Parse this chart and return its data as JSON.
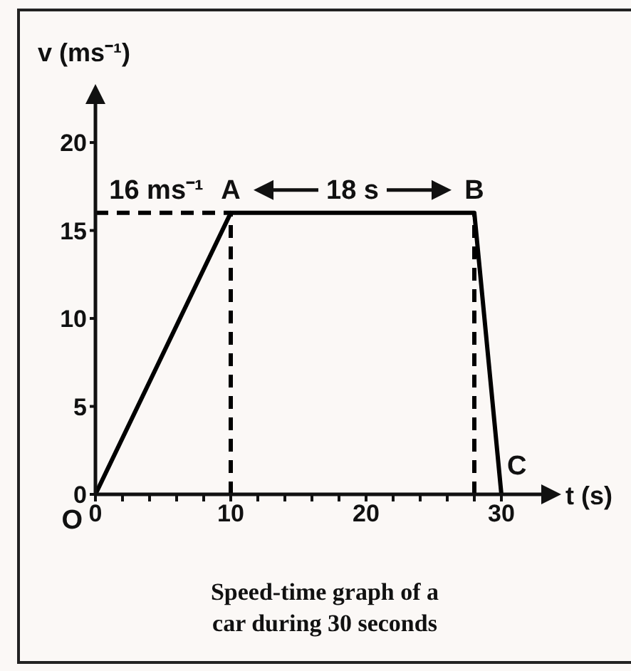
{
  "chart_data": {
    "type": "line",
    "xlabel": "t (s)",
    "ylabel": "v (ms⁻¹)",
    "xlim": [
      0,
      34
    ],
    "ylim": [
      0,
      23
    ],
    "xticks": [
      0,
      {
        "value": 2,
        "label": null
      },
      {
        "value": 4,
        "label": null
      },
      {
        "value": 6,
        "label": null
      },
      {
        "value": 8,
        "label": null
      },
      10,
      {
        "value": 12,
        "label": null
      },
      {
        "value": 14,
        "label": null
      },
      {
        "value": 16,
        "label": null
      },
      {
        "value": 18,
        "label": null
      },
      20,
      {
        "value": 22,
        "label": null
      },
      {
        "value": 24,
        "label": null
      },
      {
        "value": 26,
        "label": null
      },
      {
        "value": 28,
        "label": null
      },
      30
    ],
    "yticks": [
      0,
      5,
      10,
      15,
      20
    ],
    "series": [
      {
        "color": "#000000",
        "x": [
          0,
          10,
          28,
          30
        ],
        "values": [
          0,
          16,
          16,
          0
        ],
        "line_style": "solid"
      },
      {
        "color": "#000000",
        "x": [
          0,
          10
        ],
        "values": [
          16,
          16
        ],
        "line_style": "dashed"
      },
      {
        "color": "#000000",
        "x": [
          10,
          10
        ],
        "values": [
          0,
          16
        ],
        "line_style": "dashed"
      },
      {
        "color": "#000000",
        "x": [
          28,
          28
        ],
        "values": [
          0,
          16
        ],
        "line_style": "dashed"
      }
    ],
    "annotations": [
      {
        "text": "O",
        "x": 0,
        "y": 0
      },
      {
        "text": "A",
        "x": 10,
        "y": 16
      },
      {
        "text": "B",
        "x": 28,
        "y": 16
      },
      {
        "text": "C",
        "x": 30,
        "y": 0
      },
      {
        "text": "16 ms⁻¹",
        "x": 4.5,
        "y": 16
      },
      {
        "text": "18 s",
        "x": 19,
        "y": 16
      },
      "Speed-time graph of a car during 30 seconds"
    ]
  }
}
